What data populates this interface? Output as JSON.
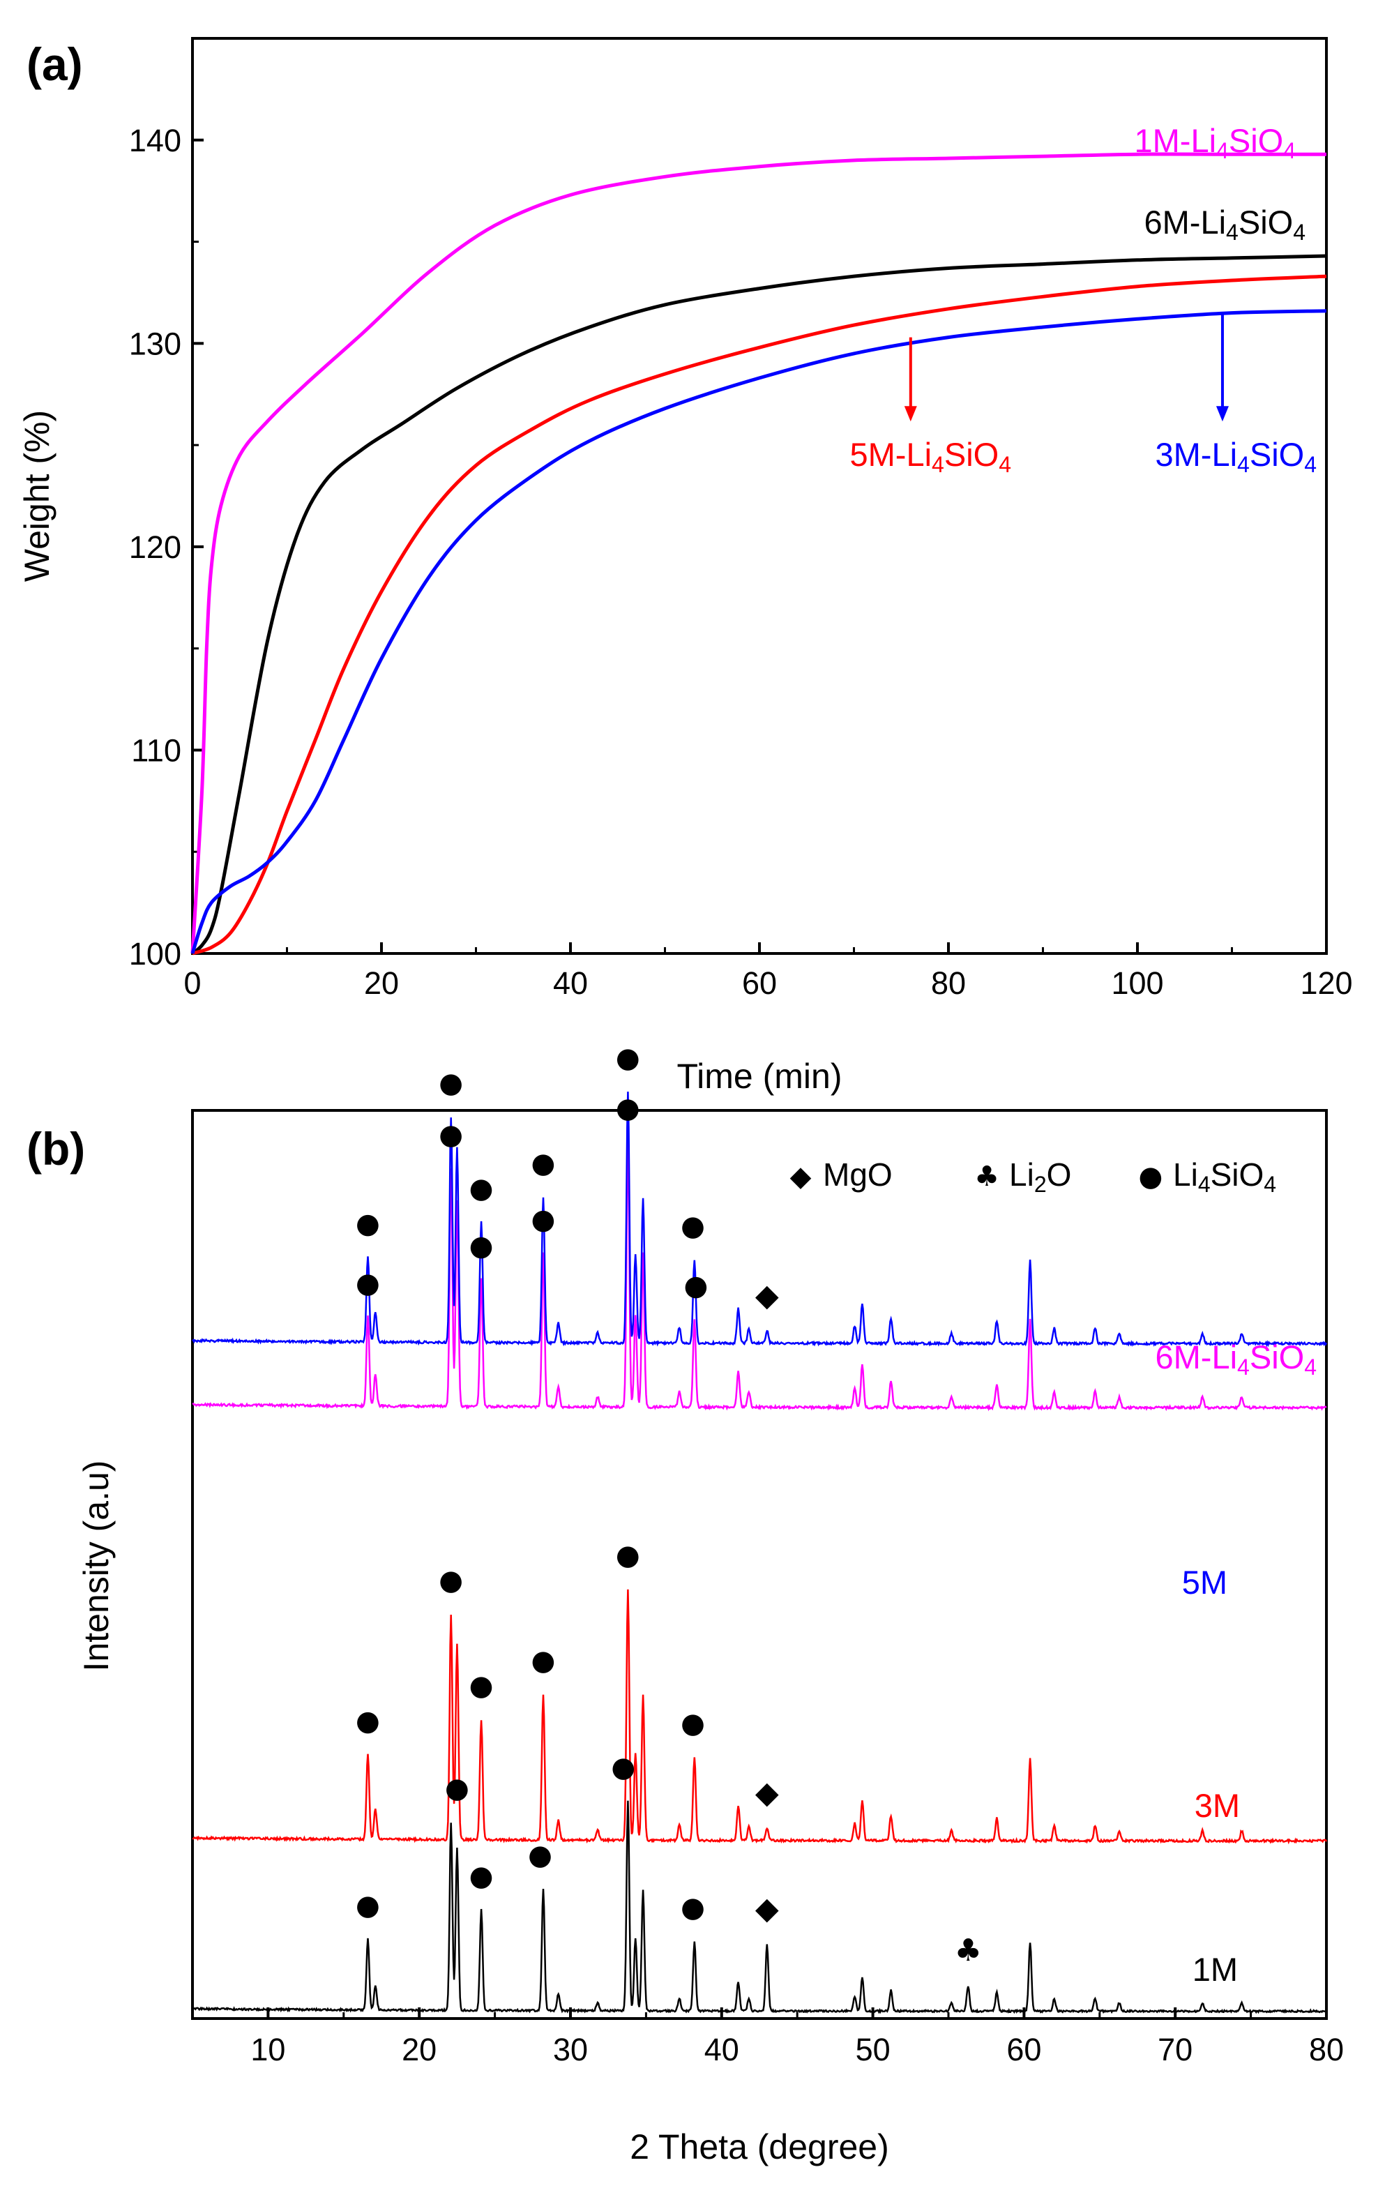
{
  "chart_data": [
    {
      "panel": "(a)",
      "type": "line",
      "xlabel": "Time (min)",
      "ylabel": "Weight (%)",
      "xlim": [
        0,
        120
      ],
      "ylim": [
        100,
        145
      ],
      "xticks": [
        0,
        20,
        40,
        60,
        80,
        100,
        120
      ],
      "yticks": [
        100,
        110,
        120,
        130,
        140
      ],
      "series": [
        {
          "name": "1M-Li4SiO4",
          "label_main": "1M-Li",
          "label_sub1": "4",
          "label_mid": "SiO",
          "label_sub2": "4",
          "color": "#ff00ff",
          "x": [
            0,
            1,
            1.5,
            2,
            3,
            5,
            8,
            12,
            18,
            25,
            32,
            40,
            50,
            60,
            70,
            80,
            90,
            100,
            110,
            120
          ],
          "y": [
            100,
            108,
            115,
            119,
            122,
            124.5,
            126.2,
            128,
            130.5,
            133.5,
            135.8,
            137.3,
            138.2,
            138.7,
            139,
            139.1,
            139.2,
            139.3,
            139.3,
            139.3
          ]
        },
        {
          "name": "6M-Li4SiO4",
          "label_main": "6M-Li",
          "label_sub1": "4",
          "label_mid": "SiO",
          "label_sub2": "4",
          "color": "#000000",
          "x": [
            0,
            1,
            2,
            3,
            5,
            8,
            11,
            14,
            18,
            22,
            28,
            35,
            42,
            50,
            60,
            70,
            80,
            90,
            100,
            110,
            120
          ],
          "y": [
            100,
            100.4,
            101.2,
            103,
            108,
            115.5,
            120.5,
            123.2,
            124.8,
            126,
            127.8,
            129.5,
            130.8,
            131.9,
            132.7,
            133.3,
            133.7,
            133.9,
            134.1,
            134.2,
            134.3
          ]
        },
        {
          "name": "5M-Li4SiO4",
          "label_main": "5M-Li",
          "label_sub1": "4",
          "label_mid": "SiO",
          "label_sub2": "4",
          "color": "#ff0000",
          "x": [
            0,
            2,
            4,
            6,
            8,
            10,
            13,
            16,
            20,
            25,
            30,
            36,
            42,
            50,
            60,
            70,
            80,
            90,
            100,
            110,
            120
          ],
          "y": [
            100,
            100.3,
            101,
            102.5,
            104.5,
            107,
            110.5,
            114,
            117.8,
            121.5,
            124,
            125.8,
            127.2,
            128.5,
            129.8,
            130.9,
            131.7,
            132.3,
            132.8,
            133.1,
            133.3
          ]
        },
        {
          "name": "3M-Li4SiO4",
          "label_main": "3M-Li",
          "label_sub1": "4",
          "label_mid": "SiO",
          "label_sub2": "4",
          "color": "#0000ff",
          "x": [
            0,
            1,
            2,
            4,
            6,
            8,
            10,
            13,
            16,
            20,
            25,
            30,
            36,
            42,
            50,
            60,
            70,
            80,
            90,
            100,
            110,
            120
          ],
          "y": [
            100,
            101.5,
            102.5,
            103.3,
            103.8,
            104.5,
            105.5,
            107.5,
            110.5,
            114.5,
            118.5,
            121.3,
            123.5,
            125.2,
            126.8,
            128.3,
            129.5,
            130.3,
            130.8,
            131.2,
            131.5,
            131.6
          ]
        }
      ]
    },
    {
      "panel": "(b)",
      "type": "line",
      "xlabel": "2 Theta (degree)",
      "ylabel": "Intensity (a.u)",
      "xlim": [
        5,
        80
      ],
      "xticks": [
        10,
        20,
        30,
        40,
        50,
        60,
        70,
        80
      ],
      "legend": [
        {
          "symbol": "◆",
          "name": "MgO",
          "name_main": "MgO",
          "name_sub": "",
          "name_tail": ""
        },
        {
          "symbol": "♣",
          "name": "Li2O",
          "name_main": "Li",
          "name_sub": "2",
          "name_tail": "O"
        },
        {
          "symbol": "●",
          "name": "Li4SiO4",
          "name_main": "Li",
          "name_sub": "4",
          "name_tail": "SiO",
          "name_sub2": "4"
        }
      ],
      "common_peaks": [
        {
          "pos": 16.6,
          "h": 0.34
        },
        {
          "pos": 17.1,
          "h": 0.12
        },
        {
          "pos": 22.1,
          "h": 0.9
        },
        {
          "pos": 22.5,
          "h": 0.78
        },
        {
          "pos": 24.1,
          "h": 0.48
        },
        {
          "pos": 28.2,
          "h": 0.58
        },
        {
          "pos": 29.2,
          "h": 0.08
        },
        {
          "pos": 31.8,
          "h": 0.04
        },
        {
          "pos": 33.8,
          "h": 1.0
        },
        {
          "pos": 34.3,
          "h": 0.35
        },
        {
          "pos": 34.8,
          "h": 0.58
        },
        {
          "pos": 37.2,
          "h": 0.06
        },
        {
          "pos": 38.2,
          "h": 0.33
        },
        {
          "pos": 41.1,
          "h": 0.14
        },
        {
          "pos": 41.8,
          "h": 0.06
        },
        {
          "pos": 48.8,
          "h": 0.07
        },
        {
          "pos": 49.3,
          "h": 0.16
        },
        {
          "pos": 51.2,
          "h": 0.1
        },
        {
          "pos": 55.2,
          "h": 0.04
        },
        {
          "pos": 58.2,
          "h": 0.09
        },
        {
          "pos": 60.4,
          "h": 0.33
        },
        {
          "pos": 62.0,
          "h": 0.06
        },
        {
          "pos": 64.7,
          "h": 0.06
        },
        {
          "pos": 66.3,
          "h": 0.04
        },
        {
          "pos": 71.8,
          "h": 0.04
        },
        {
          "pos": 74.4,
          "h": 0.04
        }
      ],
      "series": [
        {
          "name": "6M-Li4SiO4",
          "label_main": "6M-Li",
          "label_sub1": "4",
          "label_mid": "SiO",
          "label_sub2": "4",
          "color": "#ff00ff",
          "mgo": 0,
          "li2o": 0
        },
        {
          "name": "5M",
          "label_main": "5M",
          "color": "#0000ff",
          "mgo": 0.05,
          "li2o": 0
        },
        {
          "name": "3M",
          "label_main": "3M",
          "color": "#ff0000",
          "mgo": 0.05,
          "li2o": 0
        },
        {
          "name": "1M",
          "label_main": "1M",
          "color": "#000000",
          "mgo": 0.32,
          "li2o": 0.12
        }
      ],
      "markers": {
        "6M-Li4SiO4": [
          {
            "symbol": "●",
            "pos": 16.6
          },
          {
            "symbol": "●",
            "pos": 22.1
          },
          {
            "symbol": "●",
            "pos": 24.1
          },
          {
            "symbol": "●",
            "pos": 28.2
          },
          {
            "symbol": "●",
            "pos": 33.8
          },
          {
            "symbol": "●",
            "pos": 38.3
          }
        ],
        "5M": [
          {
            "symbol": "●",
            "pos": 16.6
          },
          {
            "symbol": "●",
            "pos": 22.1
          },
          {
            "symbol": "●",
            "pos": 24.1
          },
          {
            "symbol": "●",
            "pos": 28.2
          },
          {
            "symbol": "●",
            "pos": 33.8
          },
          {
            "symbol": "●",
            "pos": 38.1
          },
          {
            "symbol": "◆",
            "pos": 43.0
          }
        ],
        "3M": [
          {
            "symbol": "●",
            "pos": 16.6
          },
          {
            "symbol": "●",
            "pos": 22.1
          },
          {
            "symbol": "●",
            "pos": 24.1
          },
          {
            "symbol": "●",
            "pos": 28.2
          },
          {
            "symbol": "●",
            "pos": 33.8
          },
          {
            "symbol": "●",
            "pos": 38.1
          },
          {
            "symbol": "◆",
            "pos": 43.0
          }
        ],
        "1M": [
          {
            "symbol": "●",
            "pos": 16.6
          },
          {
            "symbol": "●",
            "pos": 22.5
          },
          {
            "symbol": "●",
            "pos": 24.1
          },
          {
            "symbol": "●",
            "pos": 28.0
          },
          {
            "symbol": "●",
            "pos": 33.5
          },
          {
            "symbol": "●",
            "pos": 38.1
          },
          {
            "symbol": "◆",
            "pos": 43.0
          },
          {
            "symbol": "♣",
            "pos": 56.3
          }
        ]
      }
    }
  ]
}
